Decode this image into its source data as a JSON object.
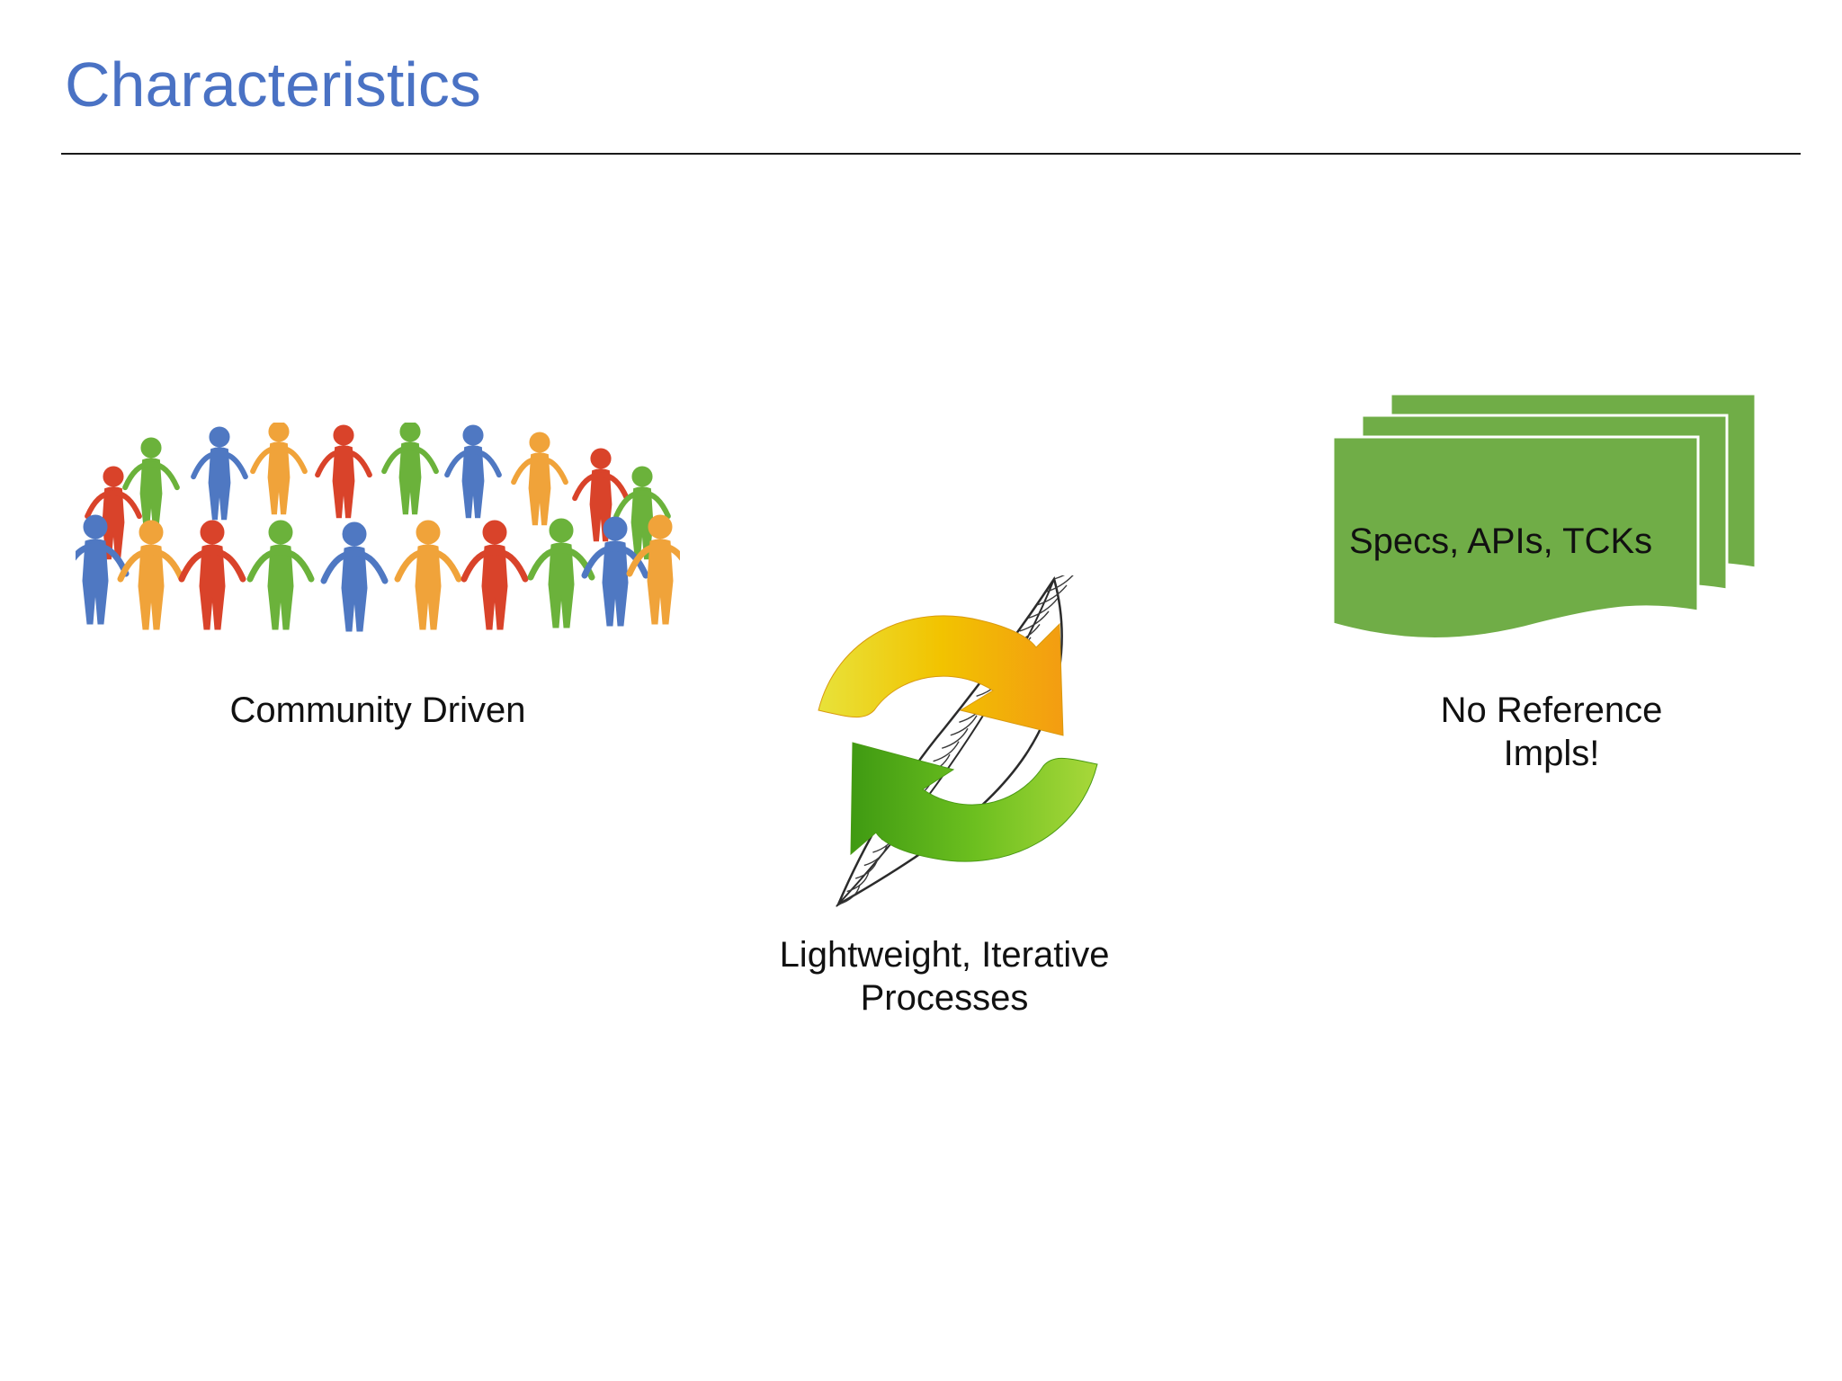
{
  "slide": {
    "title": "Characteristics"
  },
  "items": [
    {
      "icon": "people-circle-icon",
      "caption_lines": [
        "Community Driven"
      ]
    },
    {
      "icon": "feather-cycle-icon",
      "caption_lines": [
        "Lightweight, Iterative",
        "Processes"
      ]
    },
    {
      "icon": "stacked-documents-icon",
      "label": "Specs, APIs, TCKs",
      "caption_lines": [
        "No Reference",
        "Impls!"
      ]
    }
  ],
  "colors": {
    "title": "#4a72c4",
    "document_green": "#70ad47",
    "arrow_yellow": "#f2c300",
    "arrow_orange": "#f39c12",
    "arrow_green": "#5fb319",
    "person_red": "#d9432a",
    "person_orange": "#f0a33a",
    "person_green": "#6bb23b",
    "person_blue": "#4f78c2"
  }
}
